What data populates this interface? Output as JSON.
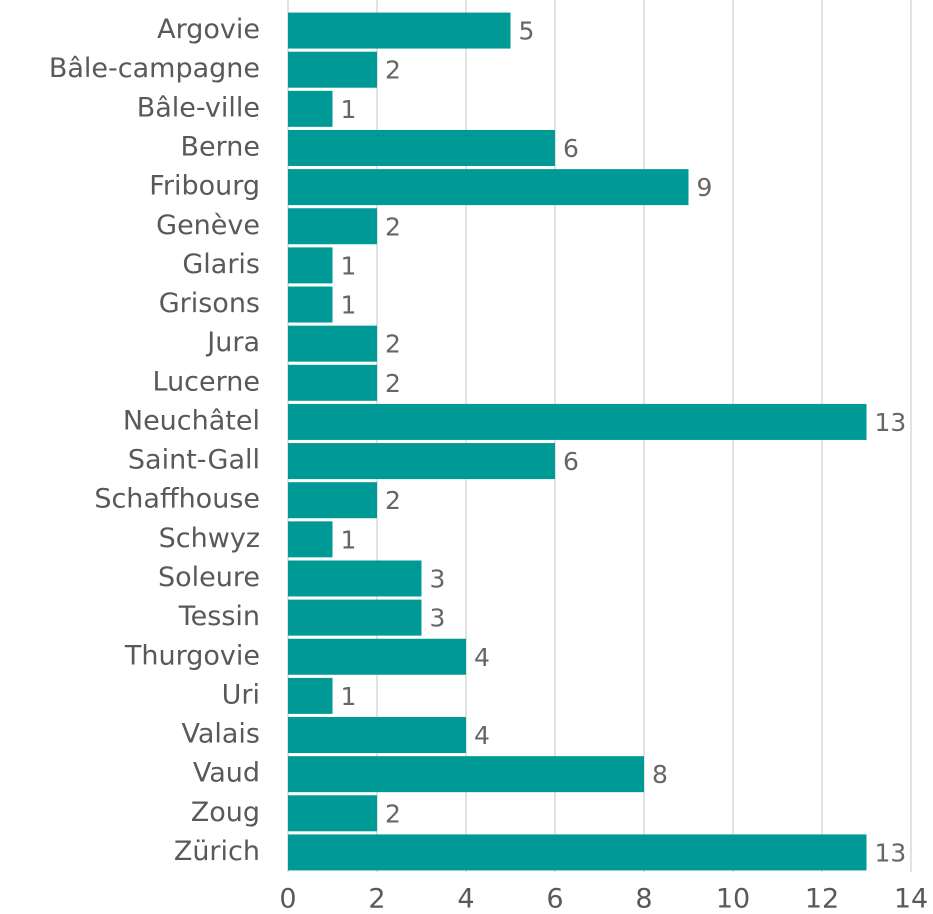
{
  "chart_data": {
    "type": "bar",
    "orientation": "horizontal",
    "categories": [
      "Argovie",
      "Bâle-campagne",
      "Bâle-ville",
      "Berne",
      "Fribourg",
      "Genève",
      "Glaris",
      "Grisons",
      "Jura",
      "Lucerne",
      "Neuchâtel",
      "Saint-Gall",
      "Schaffhouse",
      "Schwyz",
      "Soleure",
      "Tessin",
      "Thurgovie",
      "Uri",
      "Valais",
      "Vaud",
      "Zoug",
      "Zürich"
    ],
    "values": [
      5,
      2,
      1,
      6,
      9,
      2,
      1,
      1,
      2,
      2,
      13,
      6,
      2,
      1,
      3,
      3,
      4,
      1,
      4,
      8,
      2,
      13
    ],
    "color": "#009a96",
    "xlim": [
      0,
      14
    ],
    "xticks": [
      0,
      2,
      4,
      6,
      8,
      10,
      12,
      14
    ],
    "grid": true
  }
}
